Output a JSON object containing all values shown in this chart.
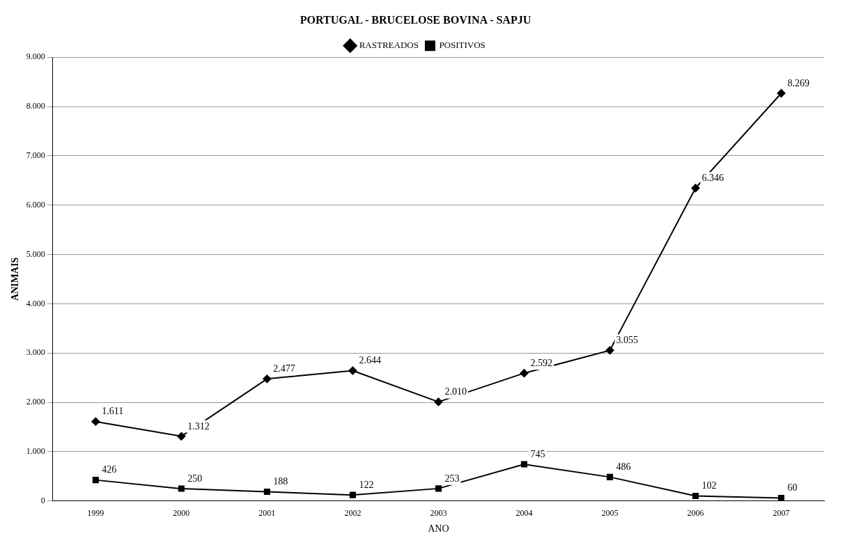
{
  "chart_data": {
    "type": "line",
    "title": "PORTUGAL - BRUCELOSE BOVINA - SAPJU",
    "xlabel": "ANO",
    "ylabel": "ANIMAIS",
    "categories": [
      "1999",
      "2000",
      "2001",
      "2002",
      "2003",
      "2004",
      "2005",
      "2006",
      "2007"
    ],
    "series": [
      {
        "name": "RASTREADOS",
        "color": "#000000",
        "marker": "diamond",
        "values": [
          1611,
          1312,
          2477,
          2644,
          2010,
          2592,
          3055,
          6346,
          8269
        ],
        "value_labels": [
          "1.611",
          "1.312",
          "2.477",
          "2.644",
          "2.010",
          "2.592",
          "3.055",
          "6.346",
          "8.269"
        ]
      },
      {
        "name": "POSITIVOS",
        "color": "#000000",
        "marker": "square",
        "values": [
          426,
          250,
          188,
          122,
          253,
          745,
          486,
          102,
          60
        ],
        "value_labels": [
          "426",
          "250",
          "188",
          "122",
          "253",
          "745",
          "486",
          "102",
          "60"
        ]
      }
    ],
    "ylim": [
      0,
      9000
    ],
    "yticks": [
      {
        "value": 0,
        "label": "0"
      },
      {
        "value": 1000,
        "label": "1.000"
      },
      {
        "value": 2000,
        "label": "2.000"
      },
      {
        "value": 3000,
        "label": "3.000"
      },
      {
        "value": 4000,
        "label": "4.000"
      },
      {
        "value": 5000,
        "label": "5.000"
      },
      {
        "value": 6000,
        "label": "6.000"
      },
      {
        "value": 7000,
        "label": "7.000"
      },
      {
        "value": 8000,
        "label": "8.000"
      },
      {
        "value": 9000,
        "label": "9.000"
      }
    ],
    "grid": "y",
    "legend": "top"
  }
}
